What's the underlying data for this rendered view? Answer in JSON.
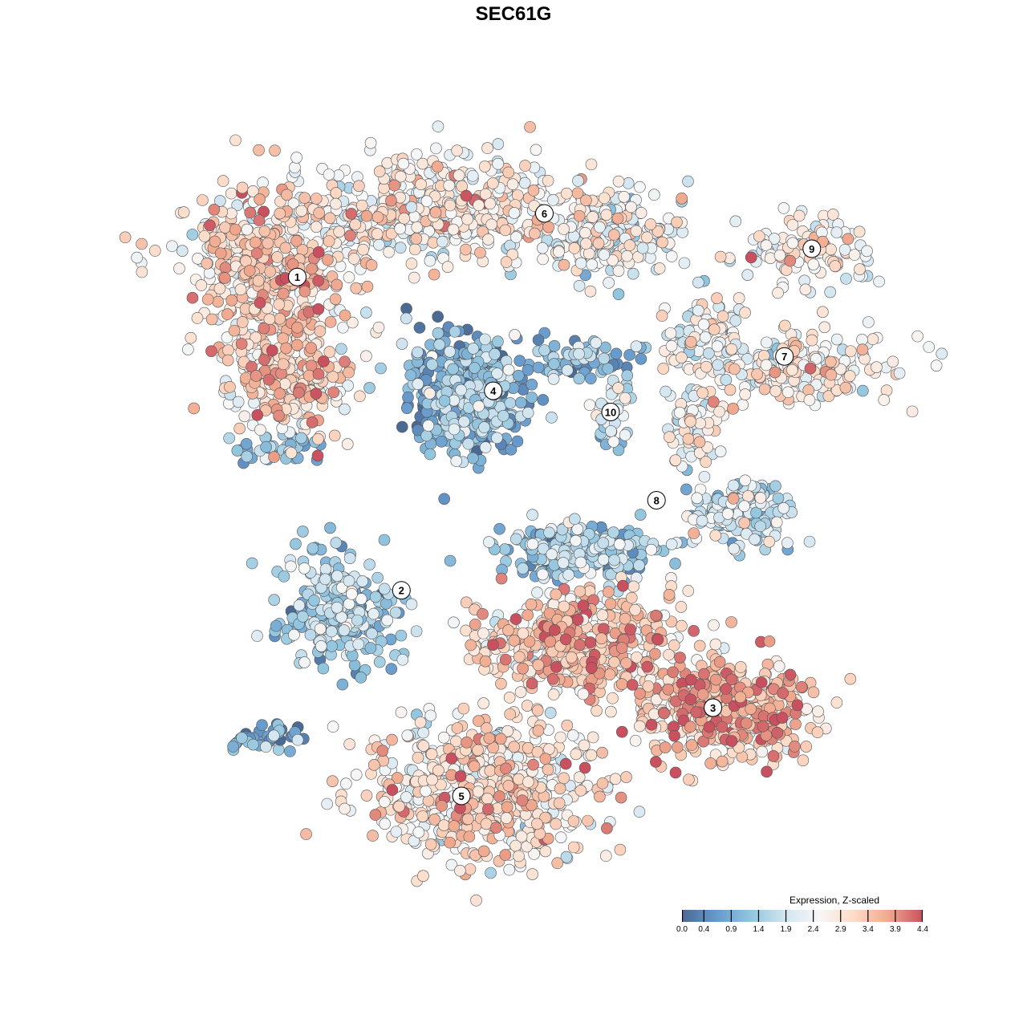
{
  "chart_data": {
    "type": "scatter",
    "title": "SEC61G",
    "xlabel": "",
    "ylabel": "",
    "xlim": [
      -40,
      45
    ],
    "ylim": [
      -45,
      42
    ],
    "grid": false,
    "note": "t-SNE embedding; points summarised as gaussian components with mean expression",
    "components": [
      {
        "cluster": "1",
        "cx": -27.3,
        "cy": 28.2,
        "sx": 6,
        "sy": 5.5,
        "n": 500,
        "expr": 3.0
      },
      {
        "cluster": "1",
        "cx": -25.5,
        "cy": 15.5,
        "sx": 5,
        "sy": 4,
        "n": 250,
        "expr": 3.0
      },
      {
        "cluster": "1",
        "cx": -26.4,
        "cy": 7.3,
        "sx": 2.5,
        "sy": 1.2,
        "n": 40,
        "expr": 1.0
      },
      {
        "cluster": "6",
        "cx": -7.3,
        "cy": 34.5,
        "sx": 9,
        "sy": 3.5,
        "n": 500,
        "expr": 2.6
      },
      {
        "cluster": "6",
        "cx": 10.9,
        "cy": 31.8,
        "sx": 5,
        "sy": 3,
        "n": 200,
        "expr": 2.3
      },
      {
        "cluster": "9",
        "cx": 32.7,
        "cy": 30,
        "sx": 5,
        "sy": 2.5,
        "n": 120,
        "expr": 2.6
      },
      {
        "cluster": "7",
        "cx": 32.7,
        "cy": 16.4,
        "sx": 7,
        "sy": 2.5,
        "n": 200,
        "expr": 2.7
      },
      {
        "cluster": "7",
        "cx": 21.8,
        "cy": 20,
        "sx": 3,
        "sy": 3,
        "n": 80,
        "expr": 2.4
      },
      {
        "cluster": "4",
        "cx": -5.5,
        "cy": 13.6,
        "sx": 4,
        "sy": 4,
        "n": 450,
        "expr": 1.0
      },
      {
        "cluster": "4",
        "cx": 7.3,
        "cy": 17.3,
        "sx": 4,
        "sy": 1.5,
        "n": 80,
        "expr": 1.0
      },
      {
        "cluster": "10",
        "cx": 10.9,
        "cy": 11.4,
        "sx": 1.5,
        "sy": 2.5,
        "n": 40,
        "expr": 1.7
      },
      {
        "cluster": "8",
        "cx": 25.5,
        "cy": 0,
        "sx": 4,
        "sy": 2.5,
        "n": 150,
        "expr": 1.8
      },
      {
        "cluster": "8",
        "cx": 20,
        "cy": 10,
        "sx": 2,
        "sy": 3,
        "n": 80,
        "expr": 2.3
      },
      {
        "cluster": "8",
        "cx": 7.3,
        "cy": -4.5,
        "sx": 6,
        "sy": 2,
        "n": 250,
        "expr": 1.3
      },
      {
        "cluster": "2",
        "cx": -20,
        "cy": -11,
        "sx": 4,
        "sy": 4,
        "n": 250,
        "expr": 1.4
      },
      {
        "cluster": "2",
        "cx": -27.3,
        "cy": -25.5,
        "sx": 3,
        "sy": 1.2,
        "n": 40,
        "expr": 0.7
      },
      {
        "cluster": "3",
        "cx": 7.3,
        "cy": -14.5,
        "sx": 7,
        "sy": 3.5,
        "n": 500,
        "expr": 3.2
      },
      {
        "cluster": "3",
        "cx": 23.6,
        "cy": -21.8,
        "sx": 6,
        "sy": 4,
        "n": 450,
        "expr": 3.4
      },
      {
        "cluster": "5",
        "cx": -3.6,
        "cy": -31,
        "sx": 8,
        "sy": 5,
        "n": 600,
        "expr": 2.8
      }
    ],
    "cluster_labels": [
      {
        "label": "1",
        "x": -24.5,
        "y": 26.8
      },
      {
        "label": "2",
        "x": -12.7,
        "y": -8.7
      },
      {
        "label": "3",
        "x": 22.6,
        "y": -22.0
      },
      {
        "label": "4",
        "x": -2.3,
        "y": 13.9
      },
      {
        "label": "5",
        "x": -5.9,
        "y": -32.0
      },
      {
        "label": "6",
        "x": 3.5,
        "y": 34.0
      },
      {
        "label": "7",
        "x": 30.7,
        "y": 17.8
      },
      {
        "label": "8",
        "x": 16.2,
        "y": 1.5
      },
      {
        "label": "9",
        "x": 33.8,
        "y": 30.0
      },
      {
        "label": "10",
        "x": 11.0,
        "y": 11.5
      }
    ],
    "legend": {
      "title": "Expression, Z-scaled",
      "ticks": [
        "0.0",
        "0.4",
        "0.9",
        "1.4",
        "1.9",
        "2.4",
        "2.9",
        "3.4",
        "3.9",
        "4.4"
      ],
      "range": [
        0,
        4.4
      ],
      "placement": "bottom-right",
      "colors": [
        "#4a6a94",
        "#6699cc",
        "#92c5de",
        "#d1e5f0",
        "#f7f7f7",
        "#fddbc7",
        "#f0a98e",
        "#c8505f"
      ]
    }
  }
}
